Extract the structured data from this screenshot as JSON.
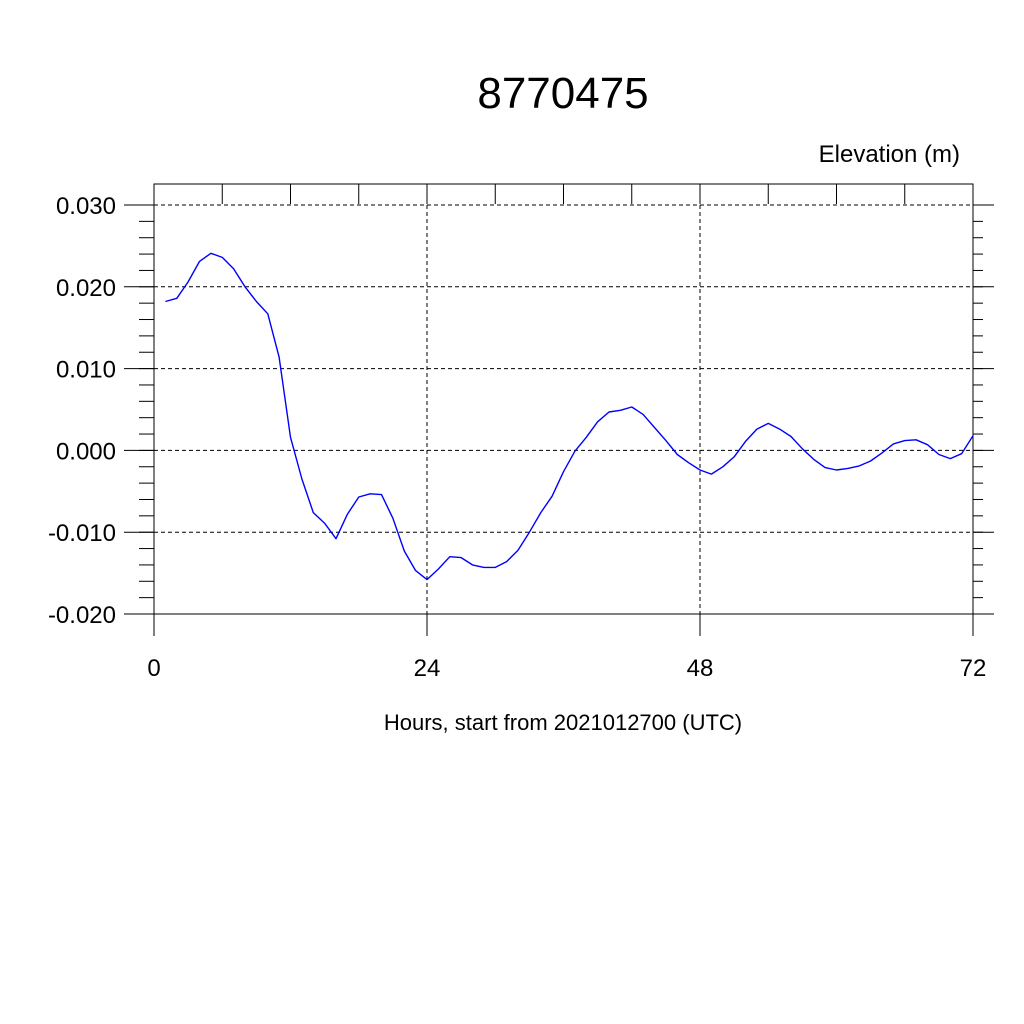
{
  "chart_data": {
    "type": "line",
    "title": "8770475",
    "subtitle": "Elevation (m)",
    "xlabel": "Hours, start from 2021012700 (UTC)",
    "ylabel": "",
    "xlim": [
      0,
      72
    ],
    "ylim": [
      -0.02,
      0.03
    ],
    "xticks": [
      0,
      24,
      48,
      72
    ],
    "xtick_labels": [
      "0",
      "24",
      "48",
      "72"
    ],
    "yticks": [
      -0.02,
      -0.01,
      0.0,
      0.01,
      0.02,
      0.03
    ],
    "ytick_labels": [
      "-0.020",
      "-0.010",
      "0.000",
      "0.010",
      "0.020",
      "0.030"
    ],
    "grid": true,
    "colors": {
      "line": "#0000ff",
      "axes": "#000000"
    },
    "series": [
      {
        "x": [
          1,
          2,
          3,
          4,
          5,
          6,
          7,
          8,
          9,
          10,
          11,
          12,
          13,
          14,
          15,
          16,
          17,
          18,
          19,
          20,
          21,
          22,
          23,
          24,
          25,
          26,
          27,
          28,
          29,
          30,
          31,
          32,
          33,
          34,
          35,
          36,
          37,
          38,
          39,
          40,
          41,
          42,
          43,
          44,
          45,
          46,
          47,
          48,
          49,
          50,
          51,
          52,
          53,
          54,
          55,
          56,
          57,
          58,
          59,
          60,
          61,
          62,
          63,
          64,
          65,
          66,
          67,
          68,
          69,
          70,
          71,
          72
        ],
        "values": [
          0.0182,
          0.0186,
          0.0206,
          0.0231,
          0.0241,
          0.0236,
          0.0222,
          0.02,
          0.0182,
          0.0167,
          0.0114,
          0.0016,
          -0.0035,
          -0.0076,
          -0.0089,
          -0.0108,
          -0.0078,
          -0.0057,
          -0.0053,
          -0.0054,
          -0.0083,
          -0.0123,
          -0.0147,
          -0.0158,
          -0.0145,
          -0.013,
          -0.0131,
          -0.014,
          -0.0143,
          -0.0143,
          -0.0136,
          -0.0122,
          -0.01,
          -0.0076,
          -0.0056,
          -0.0026,
          -0.0001,
          0.0016,
          0.0035,
          0.0047,
          0.0049,
          0.0053,
          0.0044,
          0.0028,
          0.0012,
          -0.0005,
          -0.0015,
          -0.0024,
          -0.0029,
          -0.002,
          -0.0008,
          0.0011,
          0.0026,
          0.0033,
          0.0026,
          0.0017,
          0.0002,
          -0.0011,
          -0.0021,
          -0.0024,
          -0.0022,
          -0.0019,
          -0.0013,
          -0.0003,
          0.0008,
          0.0012,
          0.0013,
          0.0007,
          -0.0005,
          -0.001,
          -0.0004,
          0.0018
        ]
      }
    ]
  }
}
